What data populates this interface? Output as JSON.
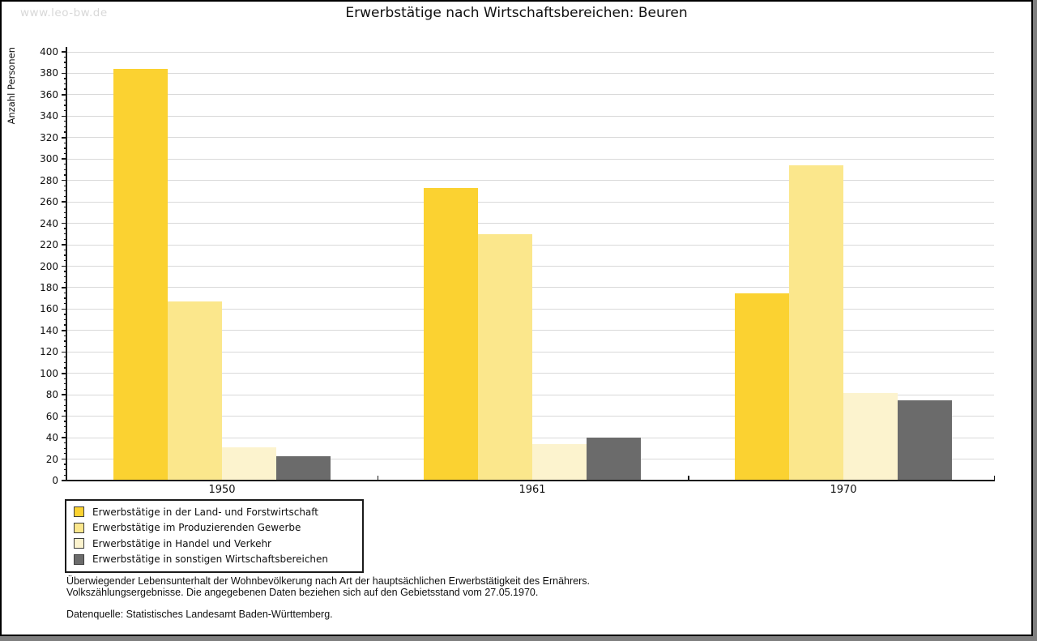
{
  "watermark": "www.leo-bw.de",
  "title": "Erwerbstätige nach Wirtschaftsbereichen: Beuren",
  "chart_data": {
    "type": "bar",
    "title": "Erwerbstätige nach Wirtschaftsbereichen: Beuren",
    "xlabel": "",
    "ylabel": "Anzahl Personen",
    "ylim": [
      0,
      400
    ],
    "y_tick_step": 20,
    "y_minor_tick_step": 5,
    "grid": "horizontal",
    "legend_position": "bottom-left",
    "categories": [
      "1950",
      "1961",
      "1970"
    ],
    "series": [
      {
        "name": "Erwerbstätige in der Land- und Forstwirtschaft",
        "color": "#FBD231",
        "values": [
          384,
          273,
          175
        ]
      },
      {
        "name": "Erwerbstätige im Produzierenden Gewerbe",
        "color": "#FBE78C",
        "values": [
          167,
          230,
          294
        ]
      },
      {
        "name": "Erwerbstätige in Handel und Verkehr",
        "color": "#FCF3CE",
        "values": [
          31,
          34,
          82
        ]
      },
      {
        "name": "Erwerbstätige in sonstigen Wirtschaftsbereichen",
        "color": "#6B6B6B",
        "values": [
          23,
          40,
          75
        ]
      }
    ]
  },
  "footnotes": {
    "line1": "Überwiegender Lebensunterhalt der Wohnbevölkerung nach Art der hauptsächlichen Erwerbstätigkeit des Ernährers.",
    "line2": "Volkszählungsergebnisse. Die angegebenen Daten beziehen sich auf den Gebietsstand vom 27.05.1970.",
    "source": "Datenquelle: Statistisches Landesamt Baden-Württemberg."
  },
  "colors": {
    "grid": "#D9D9D9",
    "axis": "#1A1A1A",
    "watermark": "#D8D8D8",
    "frame_border": "#000000",
    "frame_shadow": "#7F7F7F"
  }
}
